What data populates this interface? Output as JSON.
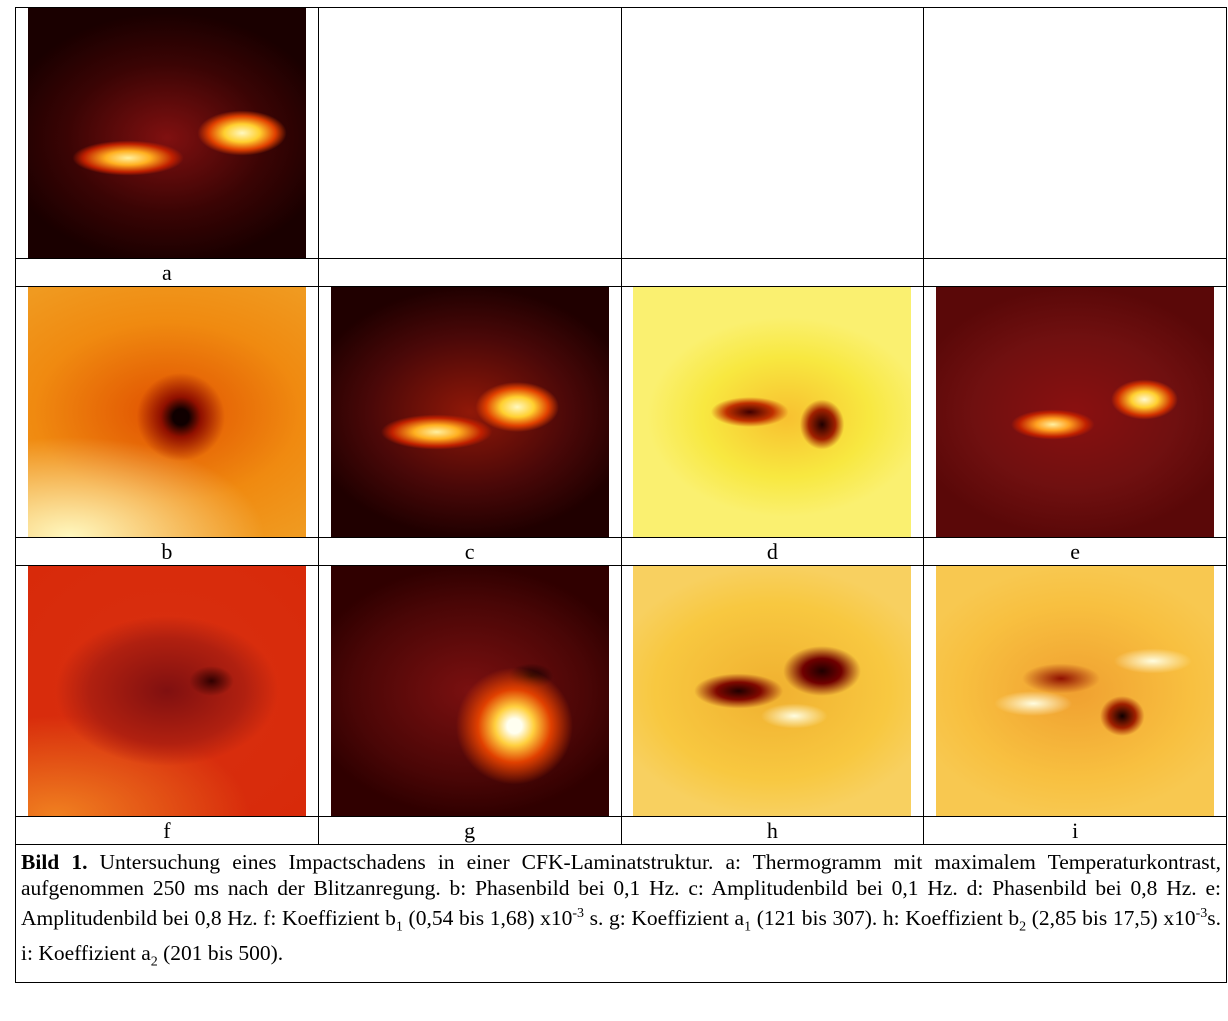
{
  "panels": [
    {
      "label": "a"
    },
    {
      "label": "b"
    },
    {
      "label": "c"
    },
    {
      "label": "d"
    },
    {
      "label": "e"
    },
    {
      "label": "f"
    },
    {
      "label": "g"
    },
    {
      "label": "h"
    },
    {
      "label": "i"
    }
  ],
  "caption": {
    "title": "Bild 1.",
    "segments": [
      "Untersuchung eines Impactschadens in einer CFK-Laminatstruktur. a: Thermogramm mit maximalem Temperaturkontrast, aufgenommen 250 ms nach der Blitzanregung. b: Phasenbild bei 0,1 Hz. c: Amplitudenbild bei 0,1 Hz. d: Phasenbild bei 0,8 Hz. e: Amplitudenbild bei 0,8 Hz. f: Koeffizient b",
      "1",
      " (0,54 bis 1,68) x10",
      "-3",
      " s. g: Koeffizient a",
      "1",
      "  (121 bis 307). h: Koeffizient b",
      "2",
      " (2,85 bis 17,5) x10",
      "-3",
      "s.  i: Koeffizient a",
      "2",
      " (201 bis 500)."
    ]
  }
}
